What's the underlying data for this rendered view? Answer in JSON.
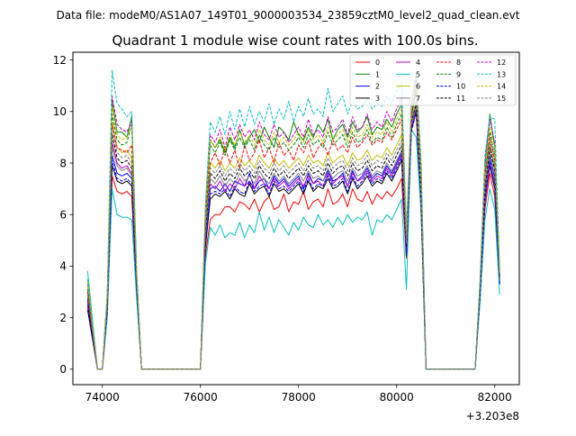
{
  "figure": {
    "suptitle": "Data file: modeM0/AS1A07_149T01_9000003534_23859cztM0_level2_quad_clean.evt"
  },
  "chart_data": {
    "type": "line",
    "title": "Quadrant 1 module wise count rates with 100.0s bins.",
    "xlabel": "",
    "ylabel": "",
    "x_offset_label": "+3.203e8",
    "xlim": [
      73400,
      82500
    ],
    "ylim": [
      -0.6,
      12.3
    ],
    "x_ticks": [
      74000,
      76000,
      78000,
      80000,
      82000
    ],
    "y_ticks": [
      0,
      2,
      4,
      6,
      8,
      10,
      12
    ],
    "legend_position": "top-right",
    "legend_columns": 4,
    "x": [
      73700,
      73900,
      74000,
      74100,
      74200,
      74300,
      74400,
      74500,
      74600,
      74700,
      74800,
      75900,
      76000,
      76100,
      76200,
      76300,
      76400,
      76500,
      76600,
      76700,
      76800,
      76900,
      77000,
      77100,
      77200,
      77300,
      77400,
      77500,
      77600,
      77700,
      77800,
      77900,
      78000,
      78100,
      78200,
      78300,
      78400,
      78500,
      78600,
      78700,
      78800,
      78900,
      79000,
      79100,
      79200,
      79300,
      79400,
      79500,
      79600,
      79700,
      79800,
      79900,
      80000,
      80100,
      80200,
      80300,
      80400,
      80500,
      80600,
      81100,
      81200,
      81300,
      81400,
      81500,
      81600,
      81700,
      81800,
      81900,
      82000,
      82100
    ],
    "series": [
      {
        "name": "0",
        "color": "#ff0000",
        "dash": "solid",
        "values": [
          2.4,
          0,
          0,
          2.1,
          7.5,
          6.9,
          6.8,
          6.9,
          6.7,
          2.9,
          0,
          0,
          0,
          4.4,
          5.8,
          6.0,
          6.0,
          6.3,
          6.3,
          6.1,
          6.5,
          6.4,
          6.2,
          6.6,
          6.1,
          6.5,
          6.7,
          6.2,
          6.3,
          6.8,
          6.1,
          6.5,
          6.4,
          6.9,
          6.2,
          6.5,
          6.6,
          6.3,
          7.0,
          6.4,
          6.5,
          6.8,
          6.3,
          7.0,
          6.6,
          6.5,
          6.9,
          6.4,
          6.8,
          6.6,
          6.9,
          6.7,
          7.0,
          7.4,
          4.3,
          9.6,
          9.9,
          5.9,
          0,
          0,
          0,
          0,
          0,
          0,
          0,
          2.8,
          6.2,
          7.6,
          6.7,
          3.4
        ]
      },
      {
        "name": "1",
        "color": "#008000",
        "dash": "solid",
        "values": [
          3.4,
          0,
          0,
          2.9,
          10.4,
          9.2,
          9.2,
          9.0,
          9.8,
          3.7,
          0,
          0,
          0,
          6.0,
          8.9,
          8.6,
          8.9,
          8.4,
          9.0,
          8.6,
          9.3,
          8.7,
          9.0,
          9.3,
          8.8,
          9.4,
          9.0,
          8.6,
          9.4,
          9.2,
          8.9,
          9.6,
          9.1,
          8.9,
          9.4,
          9.0,
          9.5,
          9.2,
          9.7,
          8.9,
          9.3,
          9.5,
          9.0,
          9.6,
          9.2,
          9.4,
          9.8,
          9.1,
          9.4,
          9.3,
          9.7,
          9.4,
          9.9,
          10.3,
          5.1,
          9.8,
          10.8,
          7.5,
          0,
          0,
          0,
          0,
          0,
          0,
          0,
          3.3,
          7.8,
          9.9,
          8.6,
          3.6
        ]
      },
      {
        "name": "2",
        "color": "#0000ff",
        "dash": "solid",
        "values": [
          2.8,
          0,
          0,
          2.4,
          8.3,
          7.6,
          7.5,
          7.6,
          7.4,
          3.2,
          0,
          0,
          0,
          4.9,
          7.0,
          7.1,
          6.9,
          7.2,
          6.9,
          7.3,
          7.2,
          7.1,
          7.6,
          7.0,
          7.3,
          7.4,
          7.0,
          7.5,
          7.2,
          7.4,
          7.1,
          7.3,
          7.5,
          7.0,
          7.6,
          7.2,
          7.4,
          7.3,
          7.7,
          7.3,
          7.4,
          7.6,
          7.1,
          7.7,
          7.3,
          7.5,
          7.8,
          7.4,
          7.6,
          7.5,
          7.9,
          7.6,
          8.0,
          8.4,
          4.6,
          9.5,
          10.2,
          6.4,
          0,
          0,
          0,
          0,
          0,
          0,
          0,
          3.0,
          6.8,
          8.3,
          7.4,
          3.5
        ]
      },
      {
        "name": "3",
        "color": "#000000",
        "dash": "solid",
        "values": [
          2.3,
          0,
          0,
          2.2,
          7.9,
          7.3,
          7.2,
          7.3,
          7.1,
          3.0,
          0,
          0,
          0,
          4.7,
          6.6,
          6.8,
          6.7,
          6.9,
          6.6,
          7.0,
          6.8,
          6.7,
          7.2,
          6.8,
          7.0,
          7.1,
          6.7,
          7.2,
          6.9,
          7.0,
          6.8,
          7.0,
          7.2,
          6.8,
          7.3,
          6.9,
          7.1,
          7.0,
          7.4,
          7.0,
          7.1,
          7.3,
          6.8,
          7.4,
          7.0,
          7.2,
          7.5,
          7.1,
          7.3,
          7.2,
          7.6,
          7.3,
          7.7,
          8.1,
          4.4,
          9.3,
          10.0,
          6.2,
          0,
          0,
          0,
          0,
          0,
          0,
          0,
          2.9,
          6.5,
          7.9,
          7.0,
          3.3
        ]
      },
      {
        "name": "4",
        "color": "#bf00bf",
        "dash": "solid",
        "values": [
          2.6,
          0,
          0,
          2.3,
          8.8,
          8.0,
          7.8,
          7.9,
          7.6,
          3.3,
          0,
          0,
          0,
          5.1,
          7.2,
          7.0,
          7.3,
          6.9,
          7.2,
          7.0,
          7.4,
          7.1,
          7.3,
          7.0,
          7.5,
          7.2,
          7.0,
          7.4,
          7.1,
          7.3,
          7.0,
          7.2,
          7.4,
          7.1,
          7.5,
          7.2,
          7.3,
          7.1,
          7.6,
          7.2,
          7.4,
          7.5,
          7.1,
          7.6,
          7.3,
          7.4,
          7.7,
          7.3,
          7.5,
          7.4,
          7.8,
          7.5,
          7.9,
          8.3,
          4.5,
          9.4,
          10.1,
          6.3,
          0,
          0,
          0,
          0,
          0,
          0,
          0,
          3.0,
          6.4,
          8.0,
          7.2,
          3.4
        ]
      },
      {
        "name": "5",
        "color": "#00bfbf",
        "dash": "solid",
        "values": [
          3.8,
          0,
          0,
          2.0,
          7.0,
          6.0,
          5.9,
          5.9,
          5.8,
          2.7,
          0,
          0,
          0,
          4.1,
          5.5,
          5.2,
          5.6,
          5.1,
          5.3,
          5.2,
          5.7,
          5.1,
          5.6,
          5.3,
          6.1,
          5.4,
          5.9,
          5.3,
          5.8,
          5.5,
          5.2,
          5.7,
          5.4,
          5.9,
          5.6,
          5.5,
          6.0,
          5.6,
          5.8,
          5.5,
          5.9,
          5.6,
          6.0,
          5.7,
          5.9,
          5.8,
          6.1,
          5.2,
          5.8,
          5.7,
          6.0,
          5.8,
          6.2,
          6.6,
          3.1,
          9.3,
          9.0,
          6.0,
          0,
          0,
          0,
          0,
          0,
          0,
          0,
          2.6,
          5.8,
          7.0,
          6.2,
          2.9
        ]
      },
      {
        "name": "6",
        "color": "#bfbf00",
        "dash": "solid",
        "values": [
          3.2,
          0,
          0,
          2.6,
          9.6,
          8.6,
          8.4,
          8.5,
          8.2,
          3.5,
          0,
          0,
          0,
          5.6,
          8.0,
          7.8,
          8.1,
          7.7,
          8.0,
          7.8,
          8.2,
          7.9,
          8.1,
          7.8,
          8.3,
          8.0,
          7.8,
          8.2,
          7.9,
          8.1,
          7.8,
          8.0,
          8.2,
          7.9,
          8.3,
          8.0,
          8.1,
          7.9,
          8.4,
          8.0,
          8.2,
          8.3,
          7.9,
          8.4,
          8.1,
          8.2,
          8.5,
          8.1,
          8.3,
          8.2,
          8.6,
          8.3,
          8.7,
          9.1,
          4.9,
          9.7,
          10.4,
          6.8,
          0,
          0,
          0,
          0,
          0,
          0,
          0,
          3.2,
          7.2,
          8.8,
          7.8,
          3.5
        ]
      },
      {
        "name": "7",
        "color": "#808080",
        "dash": "solid",
        "values": [
          2.9,
          0,
          0,
          2.4,
          8.6,
          7.9,
          7.7,
          7.8,
          7.5,
          3.2,
          0,
          0,
          0,
          5.0,
          7.4,
          7.2,
          7.5,
          7.1,
          7.4,
          7.2,
          7.6,
          7.3,
          7.5,
          7.2,
          7.7,
          7.4,
          7.2,
          7.6,
          7.3,
          7.5,
          7.2,
          7.4,
          7.6,
          7.3,
          7.7,
          7.4,
          7.5,
          7.3,
          7.8,
          7.4,
          7.6,
          7.7,
          7.3,
          7.8,
          7.5,
          7.6,
          7.9,
          7.5,
          7.7,
          7.6,
          8.0,
          7.7,
          8.1,
          8.5,
          4.7,
          9.5,
          10.2,
          6.5,
          0,
          0,
          0,
          0,
          0,
          0,
          0,
          3.1,
          6.9,
          8.4,
          7.5,
          3.4
        ]
      },
      {
        "name": "8",
        "color": "#ff0000",
        "dash": "dashed",
        "values": [
          3.0,
          0,
          0,
          2.7,
          9.5,
          8.6,
          8.5,
          8.4,
          8.7,
          3.4,
          0,
          0,
          0,
          5.8,
          8.0,
          8.4,
          7.9,
          8.6,
          8.0,
          8.5,
          7.8,
          8.7,
          8.1,
          8.4,
          8.9,
          8.2,
          8.6,
          8.0,
          8.8,
          8.3,
          8.5,
          8.1,
          8.7,
          8.4,
          8.9,
          8.2,
          8.6,
          8.8,
          8.3,
          8.9,
          8.5,
          8.7,
          8.4,
          9.0,
          8.6,
          8.8,
          9.1,
          8.7,
          8.9,
          8.8,
          9.2,
          8.9,
          9.3,
          9.7,
          4.9,
          9.9,
          10.9,
          7.2,
          0,
          0,
          0,
          0,
          0,
          0,
          0,
          3.3,
          7.5,
          9.0,
          8.1,
          3.7
        ]
      },
      {
        "name": "9",
        "color": "#008000",
        "dash": "dashed",
        "values": [
          3.1,
          0,
          0,
          2.8,
          9.9,
          8.9,
          8.7,
          8.8,
          9.5,
          3.5,
          0,
          0,
          0,
          5.9,
          8.7,
          8.4,
          8.8,
          8.3,
          8.9,
          8.5,
          9.0,
          8.6,
          8.9,
          8.5,
          9.1,
          8.7,
          8.5,
          9.0,
          8.6,
          8.8,
          8.5,
          8.7,
          9.0,
          8.6,
          9.1,
          8.7,
          8.9,
          8.6,
          9.2,
          8.7,
          8.9,
          9.1,
          8.6,
          9.2,
          8.8,
          8.9,
          9.3,
          8.8,
          9.0,
          8.9,
          9.4,
          9.0,
          9.5,
          9.9,
          5.0,
          10.0,
          11.0,
          7.3,
          0,
          0,
          0,
          0,
          0,
          0,
          0,
          3.3,
          7.6,
          9.2,
          8.3,
          3.6
        ]
      },
      {
        "name": "10",
        "color": "#0000ff",
        "dash": "dashed",
        "values": [
          2.5,
          0,
          0,
          2.3,
          8.1,
          7.4,
          7.3,
          7.4,
          7.2,
          3.1,
          0,
          0,
          0,
          4.8,
          6.8,
          6.9,
          6.8,
          7.0,
          6.7,
          7.1,
          6.9,
          6.8,
          7.3,
          6.9,
          7.1,
          7.2,
          6.8,
          7.3,
          7.0,
          7.1,
          6.9,
          7.1,
          7.3,
          6.9,
          7.4,
          7.0,
          7.2,
          7.1,
          7.5,
          7.1,
          7.2,
          7.4,
          6.9,
          7.5,
          7.1,
          7.3,
          7.6,
          7.2,
          7.4,
          7.3,
          7.7,
          7.4,
          7.8,
          8.2,
          4.5,
          9.2,
          10.0,
          6.3,
          0,
          0,
          0,
          0,
          0,
          0,
          0,
          2.9,
          6.6,
          8.1,
          7.1,
          3.3
        ]
      },
      {
        "name": "11",
        "color": "#000000",
        "dash": "dashed",
        "values": [
          2.7,
          0,
          0,
          2.5,
          9.1,
          8.2,
          8.0,
          8.1,
          7.8,
          3.3,
          0,
          0,
          0,
          5.3,
          7.6,
          7.4,
          7.7,
          7.3,
          7.6,
          7.4,
          7.8,
          7.5,
          7.7,
          7.4,
          7.9,
          7.6,
          7.4,
          7.8,
          7.5,
          7.7,
          7.4,
          7.6,
          7.8,
          7.5,
          7.9,
          7.6,
          7.7,
          7.5,
          8.0,
          7.6,
          7.8,
          7.9,
          7.5,
          8.0,
          7.7,
          7.8,
          8.1,
          7.7,
          7.9,
          7.8,
          8.2,
          7.9,
          8.3,
          8.7,
          4.8,
          9.6,
          10.3,
          6.6,
          0,
          0,
          0,
          0,
          0,
          0,
          0,
          3.1,
          7.0,
          8.6,
          7.7,
          3.5
        ]
      },
      {
        "name": "12",
        "color": "#bf00bf",
        "dash": "dashed",
        "values": [
          3.3,
          0,
          0,
          2.9,
          10.6,
          9.5,
          9.3,
          9.2,
          9.6,
          3.6,
          0,
          0,
          0,
          6.2,
          9.1,
          8.8,
          9.3,
          8.6,
          9.4,
          8.9,
          9.5,
          9.0,
          9.3,
          8.9,
          9.6,
          9.1,
          8.9,
          9.5,
          9.0,
          9.2,
          8.8,
          9.1,
          9.4,
          9.0,
          9.7,
          9.1,
          9.3,
          9.0,
          9.8,
          9.2,
          9.4,
          9.7,
          9.1,
          9.8,
          9.3,
          9.4,
          9.9,
          9.3,
          9.6,
          9.4,
          10.0,
          9.6,
          10.1,
          10.5,
          5.2,
          10.2,
          11.3,
          7.7,
          0,
          0,
          0,
          0,
          0,
          0,
          0,
          3.4,
          8.0,
          9.7,
          8.8,
          3.8
        ]
      },
      {
        "name": "13",
        "color": "#00bfbf",
        "dash": "dashed",
        "values": [
          3.5,
          0,
          0,
          3.0,
          11.6,
          10.3,
          10.1,
          9.8,
          10.0,
          3.8,
          0,
          0,
          0,
          6.4,
          9.6,
          9.2,
          9.8,
          9.1,
          10.0,
          9.3,
          10.1,
          9.4,
          10.2,
          9.5,
          10.0,
          9.6,
          10.3,
          9.5,
          10.1,
          9.7,
          10.4,
          9.6,
          10.2,
          9.8,
          10.5,
          9.9,
          10.1,
          9.8,
          10.9,
          10.0,
          10.3,
          10.6,
          9.9,
          10.4,
          10.1,
          10.2,
          10.5,
          10.1,
          10.3,
          10.2,
          10.6,
          10.3,
          10.8,
          11.1,
          5.4,
          10.4,
          11.5,
          8.0,
          0,
          0,
          0,
          0,
          0,
          0,
          0,
          3.5,
          8.3,
          9.8,
          9.7,
          3.9
        ]
      },
      {
        "name": "14",
        "color": "#bfbf00",
        "dash": "dashed",
        "values": [
          3.4,
          0,
          0,
          2.9,
          10.2,
          9.1,
          8.9,
          9.0,
          9.4,
          3.6,
          0,
          0,
          0,
          6.1,
          8.9,
          8.6,
          9.0,
          8.5,
          9.1,
          8.7,
          9.2,
          8.8,
          9.1,
          8.7,
          9.3,
          8.9,
          8.7,
          9.2,
          8.8,
          9.0,
          8.7,
          8.9,
          9.2,
          8.8,
          9.3,
          8.9,
          9.1,
          8.8,
          9.4,
          8.9,
          9.1,
          9.3,
          8.8,
          9.4,
          9.0,
          9.1,
          9.5,
          9.0,
          9.2,
          9.1,
          9.6,
          9.2,
          9.7,
          10.1,
          5.1,
          10.1,
          11.1,
          7.5,
          0,
          0,
          0,
          0,
          0,
          0,
          0,
          3.4,
          7.8,
          9.4,
          8.6,
          3.7
        ]
      },
      {
        "name": "15",
        "color": "#808080",
        "dash": "dashed",
        "values": [
          2.9,
          0,
          0,
          2.6,
          9.3,
          8.4,
          8.2,
          8.3,
          8.0,
          3.4,
          0,
          0,
          0,
          5.5,
          7.8,
          7.6,
          7.9,
          7.5,
          7.8,
          7.6,
          8.0,
          7.7,
          7.9,
          7.6,
          8.1,
          7.8,
          7.6,
          8.0,
          7.7,
          7.9,
          7.6,
          7.8,
          8.0,
          7.7,
          8.1,
          7.8,
          7.9,
          7.7,
          8.2,
          7.8,
          8.0,
          8.1,
          7.7,
          8.2,
          7.9,
          8.0,
          8.3,
          7.9,
          8.1,
          8.0,
          8.4,
          8.1,
          8.5,
          8.9,
          4.9,
          9.7,
          10.4,
          6.7,
          0,
          0,
          0,
          0,
          0,
          0,
          0,
          3.2,
          7.2,
          8.8,
          7.9,
          3.5
        ]
      }
    ]
  }
}
